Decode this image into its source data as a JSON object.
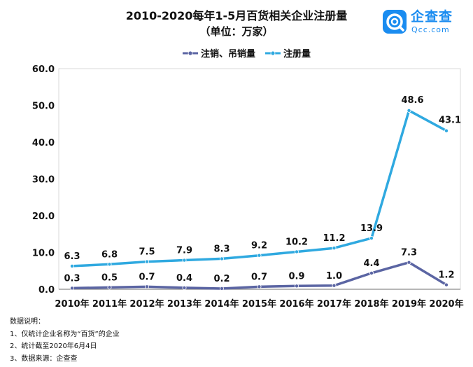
{
  "header": {
    "title": "2010-2020每年1-5月百货相关企业注册量",
    "subtitle": "（单位：万家）"
  },
  "brand": {
    "name": "企查查",
    "domain": "Qcc.com",
    "color": "#1a8cf0"
  },
  "notes": {
    "heading": "数据说明：",
    "items": [
      "1、仅统计企业名称为“百货”的企业",
      "2、统计截至2020年6月4日",
      "3、数据来源：企查查"
    ]
  },
  "chart_data": {
    "type": "line",
    "title": "2010-2020每年1-5月百货相关企业注册量",
    "subtitle": "（单位：万家）",
    "categories": [
      "2010年",
      "2011年",
      "2012年",
      "2013年",
      "2014年",
      "2015年",
      "2016年",
      "2017年",
      "2018年",
      "2019年",
      "2020年"
    ],
    "series": [
      {
        "name": "注销、吊销量",
        "color": "#5b65a3",
        "values": [
          0.3,
          0.5,
          0.7,
          0.4,
          0.2,
          0.7,
          0.9,
          1.0,
          4.4,
          7.3,
          1.2
        ]
      },
      {
        "name": "注册量",
        "color": "#2fa9e0",
        "values": [
          6.3,
          6.8,
          7.5,
          7.9,
          8.3,
          9.2,
          10.2,
          11.2,
          13.9,
          48.6,
          43.1
        ]
      }
    ],
    "yticks": [
      "0.0",
      "10.0",
      "20.0",
      "30.0",
      "40.0",
      "50.0",
      "60.0"
    ],
    "ylim": [
      0,
      60
    ],
    "grid": false,
    "legend": "top-center",
    "xlabel": "",
    "ylabel": ""
  }
}
